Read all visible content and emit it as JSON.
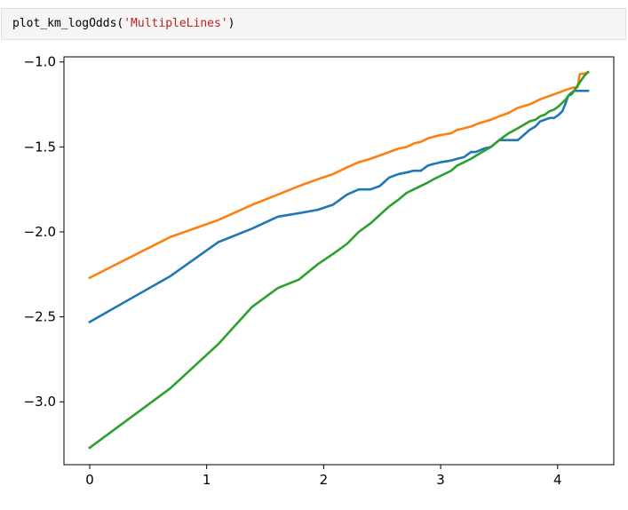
{
  "notebook": {
    "code_cell": {
      "func": "plot_km_logOdds(",
      "arg": "'MultipleLines'",
      "close": ")"
    }
  },
  "chart_data": {
    "type": "line",
    "title": "",
    "xlabel": "",
    "ylabel": "",
    "xlim": [
      -0.22,
      4.48
    ],
    "ylim": [
      -3.37,
      -0.97
    ],
    "xticks": [
      0,
      1,
      2,
      3,
      4
    ],
    "yticks": [
      -3.0,
      -2.5,
      -2.0,
      -1.5,
      -1.0
    ],
    "xtick_labels": [
      "0",
      "1",
      "2",
      "3",
      "4"
    ],
    "ytick_labels": [
      "−3.0",
      "−2.5",
      "−2.0",
      "−1.5",
      "−1.0"
    ],
    "grid": false,
    "legend": "none",
    "series": [
      {
        "color": "#1f77b4",
        "x": [
          0,
          0.69,
          1.1,
          1.39,
          1.61,
          1.79,
          1.95,
          2.08,
          2.2,
          2.3,
          2.4,
          2.48,
          2.56,
          2.64,
          2.71,
          2.77,
          2.83,
          2.89,
          2.94,
          3.0,
          3.09,
          3.14,
          3.2,
          3.26,
          3.3,
          3.37,
          3.43,
          3.5,
          3.56,
          3.66,
          3.71,
          3.76,
          3.81,
          3.85,
          3.89,
          3.93,
          3.97,
          4.01,
          4.04,
          4.07,
          4.09,
          4.12,
          4.14,
          4.16,
          4.2,
          4.26
        ],
        "y": [
          -2.53,
          -2.26,
          -2.06,
          -1.98,
          -1.91,
          -1.89,
          -1.87,
          -1.84,
          -1.78,
          -1.75,
          -1.75,
          -1.73,
          -1.68,
          -1.66,
          -1.65,
          -1.64,
          -1.64,
          -1.61,
          -1.6,
          -1.59,
          -1.58,
          -1.57,
          -1.56,
          -1.53,
          -1.53,
          -1.51,
          -1.5,
          -1.46,
          -1.46,
          -1.46,
          -1.43,
          -1.4,
          -1.38,
          -1.35,
          -1.34,
          -1.33,
          -1.33,
          -1.31,
          -1.29,
          -1.24,
          -1.2,
          -1.18,
          -1.17,
          -1.17,
          -1.17,
          -1.17
        ]
      },
      {
        "color": "#ff7f0e",
        "x": [
          0,
          0.69,
          1.1,
          1.39,
          1.61,
          1.79,
          1.95,
          2.08,
          2.2,
          2.3,
          2.4,
          2.48,
          2.56,
          2.64,
          2.71,
          2.77,
          2.83,
          2.89,
          2.94,
          3.0,
          3.09,
          3.14,
          3.2,
          3.26,
          3.33,
          3.43,
          3.5,
          3.58,
          3.66,
          3.76,
          3.85,
          3.93,
          4.01,
          4.09,
          4.14,
          4.17,
          4.19,
          4.22,
          4.26
        ],
        "y": [
          -2.27,
          -2.03,
          -1.93,
          -1.84,
          -1.78,
          -1.73,
          -1.69,
          -1.66,
          -1.62,
          -1.59,
          -1.57,
          -1.55,
          -1.53,
          -1.51,
          -1.5,
          -1.48,
          -1.47,
          -1.45,
          -1.44,
          -1.43,
          -1.42,
          -1.4,
          -1.39,
          -1.38,
          -1.36,
          -1.34,
          -1.32,
          -1.3,
          -1.27,
          -1.25,
          -1.22,
          -1.2,
          -1.18,
          -1.16,
          -1.15,
          -1.15,
          -1.07,
          -1.07,
          -1.06
        ]
      },
      {
        "color": "#2ca02c",
        "x": [
          0,
          0.69,
          1.1,
          1.39,
          1.61,
          1.79,
          1.95,
          2.08,
          2.2,
          2.3,
          2.4,
          2.48,
          2.56,
          2.64,
          2.71,
          2.77,
          2.83,
          2.89,
          2.94,
          3.0,
          3.09,
          3.14,
          3.2,
          3.26,
          3.33,
          3.43,
          3.5,
          3.58,
          3.66,
          3.71,
          3.76,
          3.81,
          3.85,
          3.89,
          3.93,
          3.97,
          4.01,
          4.04,
          4.07,
          4.09,
          4.12,
          4.14,
          4.17,
          4.2,
          4.23,
          4.26
        ],
        "y": [
          -3.27,
          -2.92,
          -2.66,
          -2.44,
          -2.33,
          -2.28,
          -2.19,
          -2.13,
          -2.07,
          -2.0,
          -1.95,
          -1.9,
          -1.85,
          -1.81,
          -1.77,
          -1.75,
          -1.73,
          -1.71,
          -1.69,
          -1.67,
          -1.64,
          -1.61,
          -1.59,
          -1.57,
          -1.54,
          -1.5,
          -1.46,
          -1.42,
          -1.39,
          -1.37,
          -1.35,
          -1.34,
          -1.32,
          -1.31,
          -1.29,
          -1.28,
          -1.26,
          -1.24,
          -1.22,
          -1.2,
          -1.19,
          -1.17,
          -1.14,
          -1.11,
          -1.08,
          -1.06
        ]
      }
    ]
  }
}
